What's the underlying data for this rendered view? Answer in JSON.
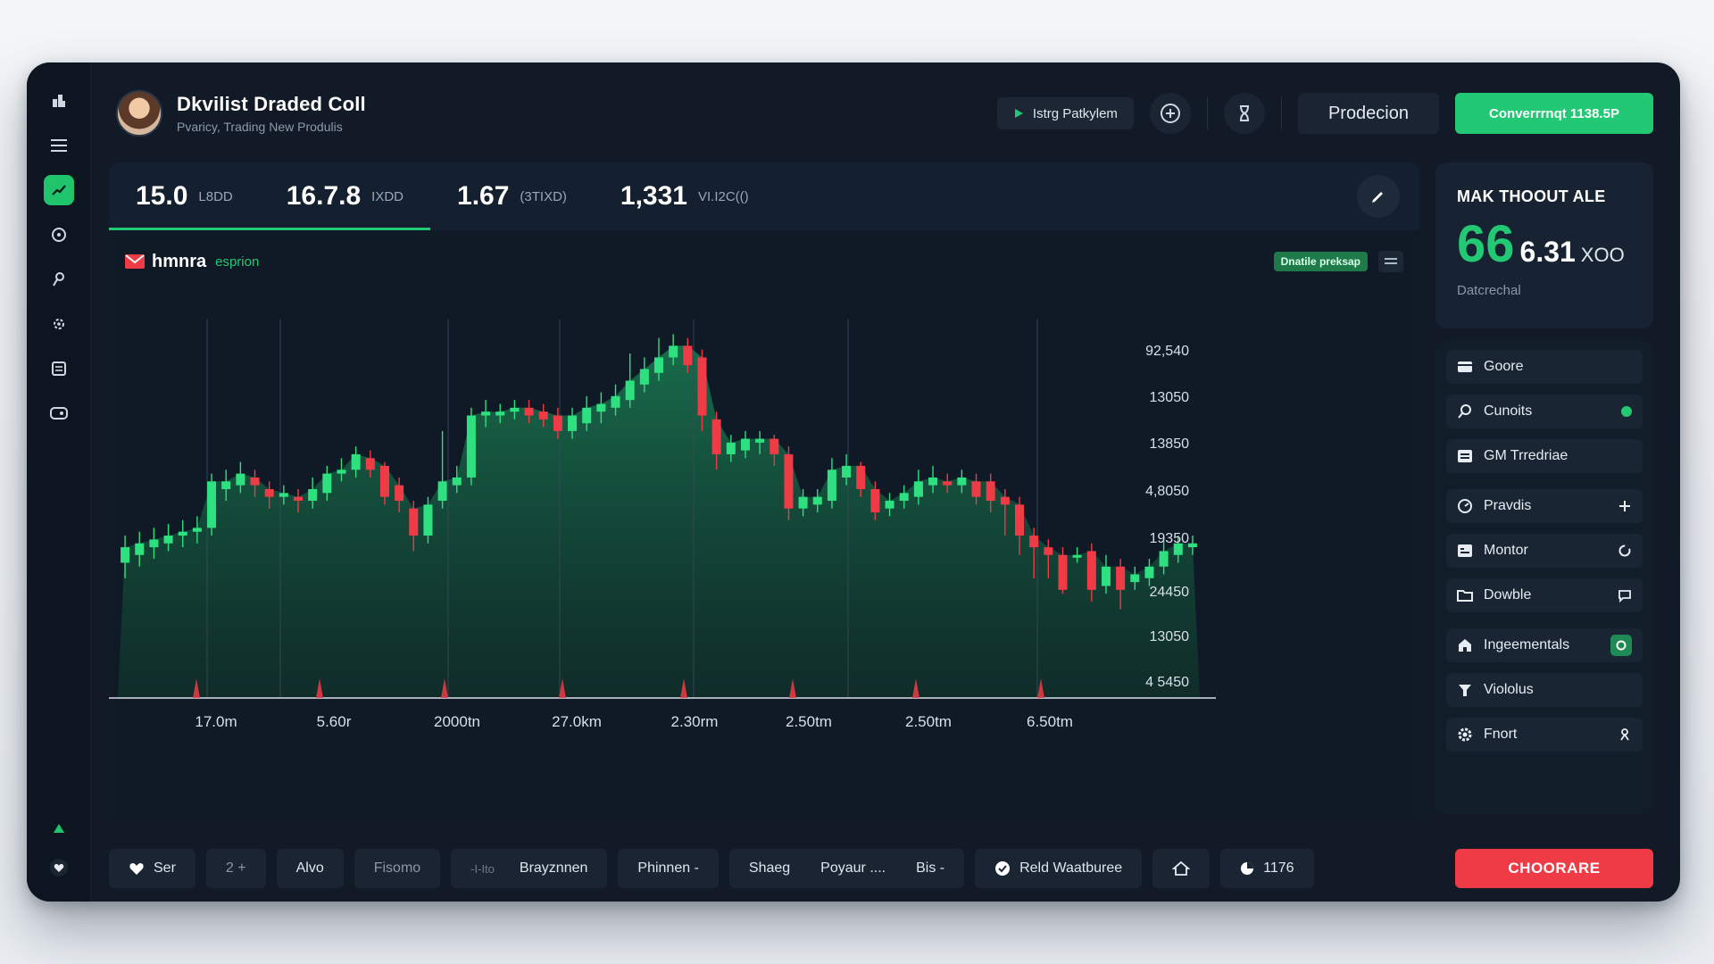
{
  "header": {
    "title": "Dkvilist Draded Coll",
    "subtitle": "Pvaricy, Trading New Produlis",
    "pill_label": "Istrg Patkylem",
    "btn_outline": "Prodecion",
    "btn_green": "Converrrnqt 1138.5P"
  },
  "stats": [
    {
      "value": "15.0",
      "unit": "L8DD"
    },
    {
      "value": "16.7.8",
      "unit": "IXDD"
    },
    {
      "value": "1.67",
      "unit": "(3TIXD)"
    },
    {
      "value": "1,331",
      "unit": "VI.I2C(()"
    }
  ],
  "chart_header": {
    "name": "hmnra",
    "sub": "esprion",
    "badge": "Dnatile preksap"
  },
  "chart_data": {
    "type": "candlestick",
    "y_tick_labels": [
      "92,540",
      "13050",
      "13850",
      "4,8050",
      "19350",
      "24450",
      "13050",
      "4 5450"
    ],
    "x_tick_labels": [
      "17.0m",
      "5.60r",
      "2000tn",
      "27.0km",
      "2.30rm",
      "2.50tm",
      "2.50tm",
      "6.50tm"
    ],
    "ylim": [
      0,
      100
    ],
    "candles": [
      {
        "o": 34,
        "c": 38,
        "h": 41,
        "l": 30
      },
      {
        "o": 36,
        "c": 39,
        "h": 42,
        "l": 33
      },
      {
        "o": 38,
        "c": 40,
        "h": 43,
        "l": 35
      },
      {
        "o": 39,
        "c": 41,
        "h": 44,
        "l": 37
      },
      {
        "o": 41,
        "c": 42,
        "h": 45,
        "l": 38
      },
      {
        "o": 42,
        "c": 43,
        "h": 46,
        "l": 39
      },
      {
        "o": 43,
        "c": 55,
        "h": 57,
        "l": 41
      },
      {
        "o": 53,
        "c": 55,
        "h": 58,
        "l": 50
      },
      {
        "o": 54,
        "c": 57,
        "h": 60,
        "l": 52
      },
      {
        "o": 56,
        "c": 54,
        "h": 58,
        "l": 51
      },
      {
        "o": 53,
        "c": 51,
        "h": 55,
        "l": 48
      },
      {
        "o": 51,
        "c": 52,
        "h": 54,
        "l": 49
      },
      {
        "o": 51,
        "c": 50,
        "h": 53,
        "l": 47
      },
      {
        "o": 50,
        "c": 53,
        "h": 56,
        "l": 48
      },
      {
        "o": 52,
        "c": 57,
        "h": 59,
        "l": 50
      },
      {
        "o": 57,
        "c": 58,
        "h": 61,
        "l": 55
      },
      {
        "o": 58,
        "c": 62,
        "h": 64,
        "l": 56
      },
      {
        "o": 61,
        "c": 58,
        "h": 63,
        "l": 56
      },
      {
        "o": 59,
        "c": 51,
        "h": 60,
        "l": 49
      },
      {
        "o": 54,
        "c": 50,
        "h": 56,
        "l": 47
      },
      {
        "o": 48,
        "c": 41,
        "h": 50,
        "l": 37
      },
      {
        "o": 41,
        "c": 49,
        "h": 51,
        "l": 39
      },
      {
        "o": 50,
        "c": 55,
        "h": 68,
        "l": 48
      },
      {
        "o": 54,
        "c": 56,
        "h": 59,
        "l": 52
      },
      {
        "o": 56,
        "c": 72,
        "h": 74,
        "l": 54
      },
      {
        "o": 72,
        "c": 73,
        "h": 76,
        "l": 69
      },
      {
        "o": 72,
        "c": 73,
        "h": 75,
        "l": 70
      },
      {
        "o": 73,
        "c": 74,
        "h": 76,
        "l": 71
      },
      {
        "o": 74,
        "c": 72,
        "h": 76,
        "l": 70
      },
      {
        "o": 73,
        "c": 71,
        "h": 75,
        "l": 69
      },
      {
        "o": 72,
        "c": 68,
        "h": 74,
        "l": 66
      },
      {
        "o": 68,
        "c": 72,
        "h": 74,
        "l": 66
      },
      {
        "o": 70,
        "c": 74,
        "h": 77,
        "l": 68
      },
      {
        "o": 73,
        "c": 75,
        "h": 78,
        "l": 70
      },
      {
        "o": 74,
        "c": 77,
        "h": 80,
        "l": 72
      },
      {
        "o": 76,
        "c": 81,
        "h": 88,
        "l": 74
      },
      {
        "o": 80,
        "c": 84,
        "h": 87,
        "l": 78
      },
      {
        "o": 83,
        "c": 87,
        "h": 92,
        "l": 81
      },
      {
        "o": 87,
        "c": 90,
        "h": 93,
        "l": 85
      },
      {
        "o": 90,
        "c": 85,
        "h": 92,
        "l": 83
      },
      {
        "o": 87,
        "c": 72,
        "h": 89,
        "l": 68
      },
      {
        "o": 71,
        "c": 62,
        "h": 73,
        "l": 58
      },
      {
        "o": 62,
        "c": 65,
        "h": 67,
        "l": 60
      },
      {
        "o": 63,
        "c": 66,
        "h": 68,
        "l": 61
      },
      {
        "o": 65,
        "c": 66,
        "h": 68,
        "l": 62
      },
      {
        "o": 66,
        "c": 62,
        "h": 67,
        "l": 59
      },
      {
        "o": 62,
        "c": 48,
        "h": 64,
        "l": 45
      },
      {
        "o": 48,
        "c": 51,
        "h": 53,
        "l": 46
      },
      {
        "o": 49,
        "c": 51,
        "h": 53,
        "l": 47
      },
      {
        "o": 50,
        "c": 58,
        "h": 61,
        "l": 48
      },
      {
        "o": 56,
        "c": 59,
        "h": 62,
        "l": 54
      },
      {
        "o": 59,
        "c": 53,
        "h": 60,
        "l": 51
      },
      {
        "o": 53,
        "c": 47,
        "h": 55,
        "l": 45
      },
      {
        "o": 48,
        "c": 50,
        "h": 52,
        "l": 46
      },
      {
        "o": 50,
        "c": 52,
        "h": 54,
        "l": 48
      },
      {
        "o": 51,
        "c": 55,
        "h": 58,
        "l": 49
      },
      {
        "o": 54,
        "c": 56,
        "h": 59,
        "l": 52
      },
      {
        "o": 55,
        "c": 54,
        "h": 57,
        "l": 52
      },
      {
        "o": 54,
        "c": 56,
        "h": 58,
        "l": 52
      },
      {
        "o": 55,
        "c": 51,
        "h": 57,
        "l": 49
      },
      {
        "o": 55,
        "c": 50,
        "h": 57,
        "l": 47
      },
      {
        "o": 51,
        "c": 49,
        "h": 53,
        "l": 41
      },
      {
        "o": 49,
        "c": 41,
        "h": 51,
        "l": 36
      },
      {
        "o": 41,
        "c": 38,
        "h": 43,
        "l": 30
      },
      {
        "o": 38,
        "c": 36,
        "h": 40,
        "l": 30
      },
      {
        "o": 36,
        "c": 27,
        "h": 38,
        "l": 26
      },
      {
        "o": 36,
        "c": 36,
        "h": 38,
        "l": 34
      },
      {
        "o": 37,
        "c": 27,
        "h": 39,
        "l": 24
      },
      {
        "o": 28,
        "c": 33,
        "h": 36,
        "l": 26
      },
      {
        "o": 33,
        "c": 27,
        "h": 35,
        "l": 22
      },
      {
        "o": 29,
        "c": 31,
        "h": 33,
        "l": 27
      },
      {
        "o": 30,
        "c": 33,
        "h": 35,
        "l": 28
      },
      {
        "o": 33,
        "c": 37,
        "h": 40,
        "l": 31
      },
      {
        "o": 36,
        "c": 39,
        "h": 41,
        "l": 34
      },
      {
        "o": 38,
        "c": 39,
        "h": 41,
        "l": 36
      }
    ],
    "grid": true
  },
  "price_card": {
    "label": "MAK THOOUT ALE",
    "big": "66",
    "rest": "6.31",
    "unit": "XOO",
    "note": "Datcrechal"
  },
  "side_items": [
    {
      "label": "Goore",
      "icon": "card-icon"
    },
    {
      "label": "Cunoits",
      "icon": "search-icon",
      "trail": "green-dot"
    },
    {
      "label": "GM Trredriae",
      "icon": "list-icon"
    },
    {
      "label": "Pravdis",
      "icon": "gauge-icon",
      "trail": "plus"
    },
    {
      "label": "Montor",
      "icon": "monitor-icon",
      "trail": "refresh"
    },
    {
      "label": "Dowble",
      "icon": "folder-icon",
      "trail": "chat"
    },
    {
      "label": "Ingeementals",
      "icon": "home-icon",
      "trail": "toggle"
    },
    {
      "label": "Viololus",
      "icon": "filter-icon"
    },
    {
      "label": "Fnort",
      "icon": "gear-icon",
      "trail": "person"
    }
  ],
  "toolbar": {
    "ser": "Ser",
    "count": "2 +",
    "alvo": "Alvo",
    "fisomo": "Fisomo",
    "bray_prefix": "-I-Ito",
    "bray": "Brayznnen",
    "phinnen": "Phinnen -",
    "shaeg": "Shaeg",
    "poyaur": "Poyaur  ....",
    "bis": "Bis -",
    "reld": "Reld Waatburee",
    "count2": "1176",
    "red": "CHOORARE"
  },
  "colors": {
    "accent_green": "#22c873",
    "accent_red": "#ef3b45",
    "bg": "#111a26"
  }
}
